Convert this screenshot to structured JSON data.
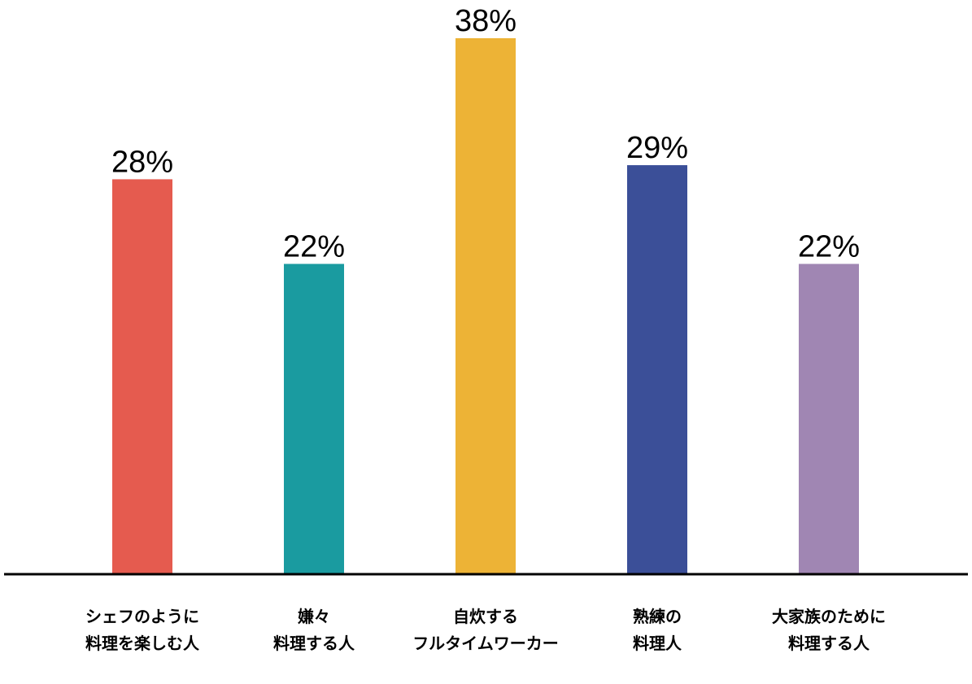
{
  "chart_data": {
    "type": "bar",
    "categories": [
      [
        "シェフのように",
        "料理を楽しむ人"
      ],
      [
        "嫌々",
        "料理する人"
      ],
      [
        "自炊する",
        "フルタイムワーカー"
      ],
      [
        "熟練の",
        "料理人"
      ],
      [
        "大家族のために",
        "料理する人"
      ]
    ],
    "values": [
      28,
      22,
      38,
      29,
      22
    ],
    "value_labels": [
      "28%",
      "22%",
      "38%",
      "29%",
      "22%"
    ],
    "colors": [
      "#E55B4F",
      "#1A9BA0",
      "#EDB336",
      "#3B4F98",
      "#A086B3"
    ],
    "ylim": [
      0,
      38
    ],
    "title": "",
    "xlabel": "",
    "ylabel": "",
    "grid": false,
    "legend": "none"
  }
}
